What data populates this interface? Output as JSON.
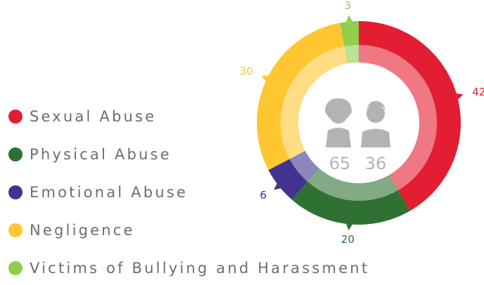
{
  "chart_data": {
    "type": "donut",
    "categories": [
      "Sexual Abuse",
      "Physical Abuse",
      "Emotional Abuse",
      "Negligence",
      "Victims of Bullying and Harassment"
    ],
    "values": [
      42,
      20,
      6,
      30,
      3
    ],
    "colors": [
      "#e41e32",
      "#2f7132",
      "#41338f",
      "#fec731",
      "#8fcf4c"
    ],
    "center_counts": [
      65,
      36
    ]
  }
}
